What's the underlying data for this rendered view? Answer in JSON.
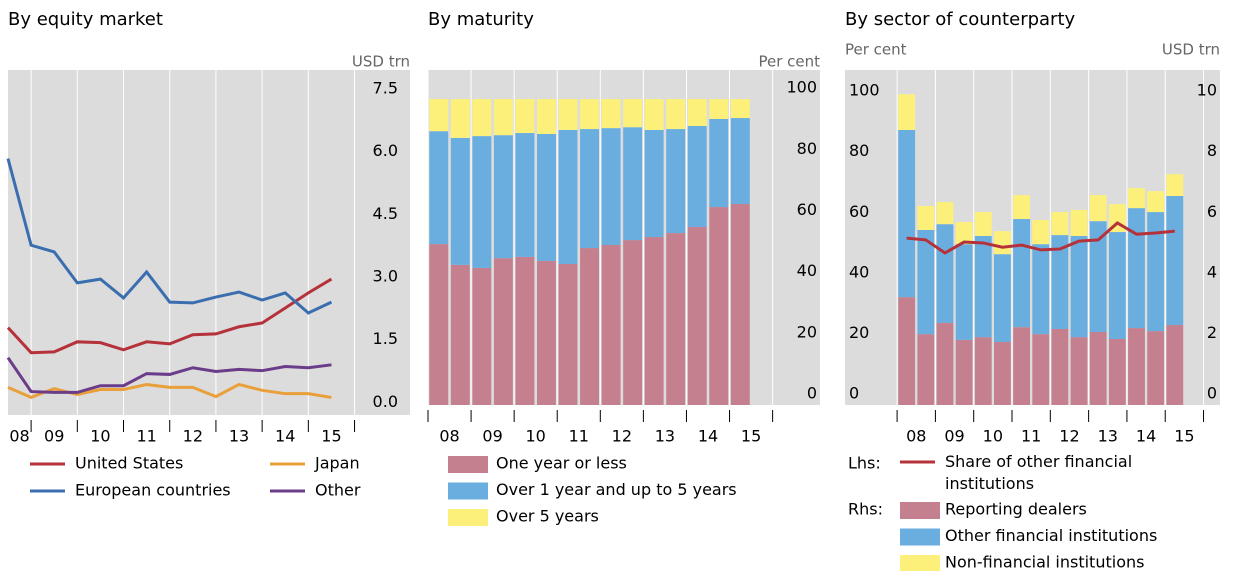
{
  "chart_data": [
    {
      "type": "line",
      "title": "By equity market",
      "unit_label": "USD trn",
      "x": [
        2008.5,
        2009,
        2009.5,
        2010,
        2010.5,
        2011,
        2011.5,
        2012,
        2012.5,
        2013,
        2013.5,
        2014,
        2014.5,
        2015,
        2015.5
      ],
      "xlim": [
        2008.5,
        2017.2
      ],
      "xticks": [
        {
          "value": 2008.75,
          "label": "08"
        },
        {
          "value": 2009.5,
          "label": "09"
        },
        {
          "value": 2010.5,
          "label": "10"
        },
        {
          "value": 2011.5,
          "label": "11"
        },
        {
          "value": 2012.5,
          "label": "12"
        },
        {
          "value": 2013.5,
          "label": "13"
        },
        {
          "value": 2014.5,
          "label": "14"
        },
        {
          "value": 2015.5,
          "label": "15"
        }
      ],
      "ylim": [
        -0.3,
        7.95
      ],
      "yticks": [
        {
          "value": 0,
          "label": "0.0"
        },
        1.5,
        {
          "value": 3,
          "label": "3.0"
        },
        4.5,
        {
          "value": 6,
          "label": "6.0"
        },
        7.5
      ],
      "series": [
        {
          "name": "United States",
          "color": "#b5323a",
          "values": [
            1.79,
            1.19,
            1.21,
            1.45,
            1.43,
            1.26,
            1.45,
            1.4,
            1.62,
            1.64,
            1.81,
            1.9,
            2.26,
            2.62,
            2.95
          ]
        },
        {
          "name": "European countries",
          "color": "#3a6eaf",
          "values": [
            5.83,
            3.76,
            3.6,
            2.86,
            2.95,
            2.5,
            3.12,
            2.4,
            2.38,
            2.52,
            2.64,
            2.45,
            2.62,
            2.14,
            2.4
          ]
        },
        {
          "name": "Japan",
          "color": "#e9a03a",
          "values": [
            0.36,
            0.12,
            0.33,
            0.19,
            0.31,
            0.31,
            0.43,
            0.36,
            0.36,
            0.14,
            0.43,
            0.29,
            0.21,
            0.21,
            0.12
          ]
        },
        {
          "name": "Other",
          "color": "#6b3c8a",
          "values": [
            1.07,
            0.26,
            0.24,
            0.24,
            0.4,
            0.4,
            0.69,
            0.67,
            0.83,
            0.74,
            0.79,
            0.76,
            0.86,
            0.83,
            0.9
          ]
        }
      ]
    },
    {
      "type": "stacked_bar",
      "title": "By maturity",
      "unit_label": "Per cent",
      "x": [
        2008.25,
        2008.75,
        2009.25,
        2009.75,
        2010.25,
        2010.75,
        2011.25,
        2011.75,
        2012.25,
        2012.75,
        2013.25,
        2013.75,
        2014.25,
        2014.75,
        2015.25
      ],
      "xlim": [
        2008,
        2017.1
      ],
      "xticks": [
        {
          "value": 2008.5,
          "label": "08"
        },
        {
          "value": 2009.5,
          "label": "09"
        },
        {
          "value": 2010.5,
          "label": "10"
        },
        {
          "value": 2011.5,
          "label": "11"
        },
        {
          "value": 2012.5,
          "label": "12"
        },
        {
          "value": 2013.5,
          "label": "13"
        },
        {
          "value": 2014.5,
          "label": "14"
        },
        {
          "value": 2015.5,
          "label": "15"
        }
      ],
      "ylim": [
        0,
        109.5
      ],
      "yticks": [
        0,
        20,
        40,
        60,
        80,
        100
      ],
      "series": [
        {
          "name": "One year or less",
          "color": "#c4808e",
          "values": [
            52.6,
            45.8,
            44.8,
            48.0,
            48.4,
            47.1,
            46.1,
            51.3,
            52.3,
            53.9,
            54.9,
            56.2,
            58.2,
            64.7,
            65.7
          ]
        },
        {
          "name": "Over 1 year and up to 5 years",
          "color": "#6aaee0",
          "values": [
            36.9,
            41.5,
            43.1,
            40.2,
            40.5,
            41.5,
            43.8,
            38.9,
            38.2,
            36.9,
            35.0,
            34.0,
            33.0,
            28.8,
            28.1
          ]
        },
        {
          "name": "Over 5 years",
          "color": "#fdf07a",
          "values": [
            10.5,
            12.7,
            12.1,
            11.8,
            11.1,
            11.4,
            10.1,
            9.8,
            9.5,
            9.2,
            10.1,
            9.8,
            8.8,
            6.5,
            6.2
          ]
        }
      ]
    },
    {
      "type": "bar_line",
      "title": "By sector of counterparty",
      "unit_label": "Per cent",
      "unit_label_2": "USD trn",
      "lhs_label": "Lhs:",
      "rhs_label": "Rhs:",
      "x": [
        2008.25,
        2008.75,
        2009.25,
        2009.75,
        2010.25,
        2010.75,
        2011.25,
        2011.75,
        2012.25,
        2012.75,
        2013.25,
        2013.75,
        2014.25,
        2014.75,
        2015.25
      ],
      "xlim": [
        2006.64,
        2016.43
      ],
      "xticks": [
        {
          "value": 2008.5,
          "label": "08"
        },
        {
          "value": 2009.5,
          "label": "09"
        },
        {
          "value": 2010.5,
          "label": "10"
        },
        {
          "value": 2011.5,
          "label": "11"
        },
        {
          "value": 2012.5,
          "label": "12"
        },
        {
          "value": 2013.5,
          "label": "13"
        },
        {
          "value": 2014.5,
          "label": "14"
        },
        {
          "value": 2015.5,
          "label": "15"
        }
      ],
      "ylim": [
        0,
        110.6
      ],
      "yticks": [
        0,
        20,
        40,
        60,
        80,
        100
      ],
      "y2lim": [
        0,
        11.06
      ],
      "y2ticks": [
        0,
        2,
        4,
        6,
        8,
        10
      ],
      "series": [
        {
          "name": "Share of other financial institutions",
          "color": "#b5323a",
          "axis": "y",
          "values": [
            55.1,
            54.5,
            50.2,
            53.8,
            53.5,
            52.1,
            52.8,
            51.2,
            51.5,
            54.1,
            54.5,
            60.1,
            56.4,
            56.8,
            57.4
          ]
        },
        {
          "name": "Reporting dealers",
          "color": "#c4808e",
          "axis": "y2",
          "values": [
            3.56,
            2.34,
            2.71,
            2.15,
            2.24,
            2.08,
            2.57,
            2.34,
            2.51,
            2.24,
            2.41,
            2.18,
            2.54,
            2.44,
            2.64
          ]
        },
        {
          "name": "Other financial institutions",
          "color": "#6aaee0",
          "axis": "y2",
          "values": [
            5.52,
            3.44,
            3.26,
            3.16,
            3.34,
            2.9,
            3.57,
            2.97,
            3.1,
            3.34,
            3.66,
            3.53,
            3.96,
            3.93,
            4.26
          ]
        },
        {
          "name": "Non-financial institutions",
          "color": "#fdf07a",
          "axis": "y2",
          "values": [
            1.18,
            0.79,
            0.73,
            0.73,
            0.79,
            0.76,
            0.79,
            0.8,
            0.76,
            0.86,
            0.86,
            0.92,
            0.66,
            0.69,
            0.72
          ]
        }
      ]
    }
  ]
}
